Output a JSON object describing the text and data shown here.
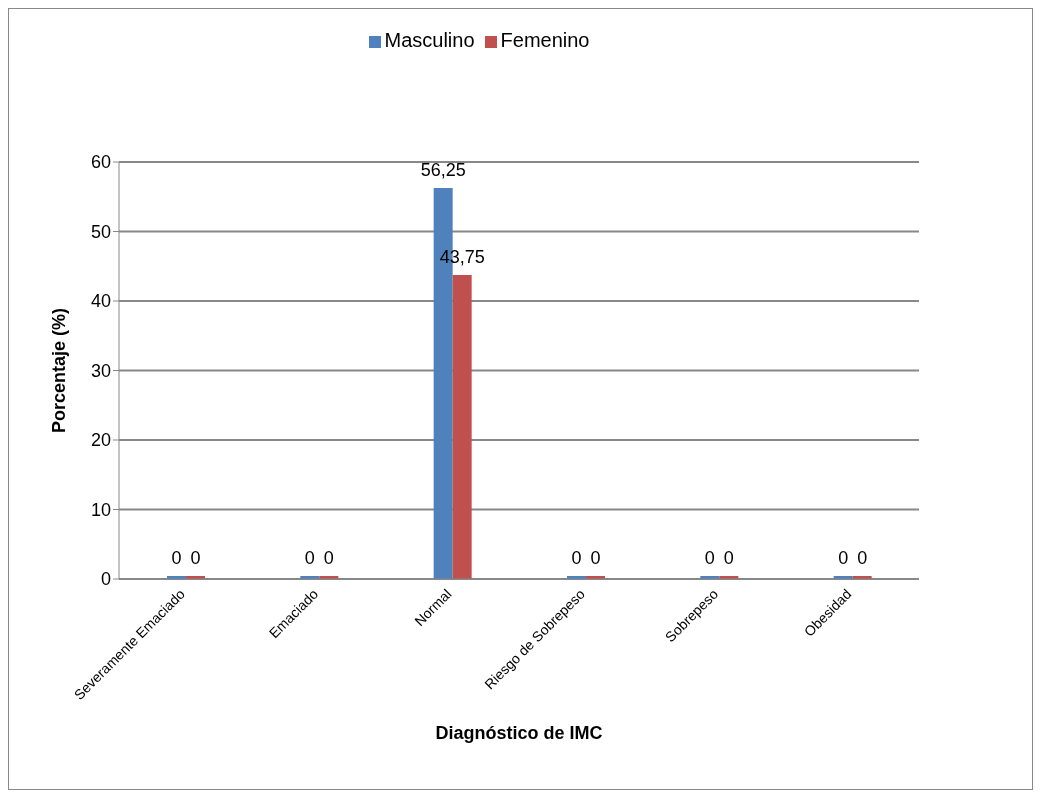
{
  "chart_data": {
    "type": "bar",
    "xlabel": "Diagnóstico de IMC",
    "ylabel": "Porcentaje (%)",
    "categories": [
      "Severamente Emaciado",
      "Emaciado",
      "Normal",
      "Riesgo de Sobrepeso",
      "Sobrepeso",
      "Obesidad"
    ],
    "series": [
      {
        "name": "Masculino",
        "color": "#4f81bd",
        "values": [
          0,
          0,
          56.25,
          0,
          0,
          0
        ],
        "value_labels": [
          "0",
          "0",
          "56,25",
          "0",
          "0",
          "0"
        ]
      },
      {
        "name": "Femenino",
        "color": "#c0504d",
        "values": [
          0,
          0,
          43.75,
          0,
          0,
          0
        ],
        "value_labels": [
          "0",
          "0",
          "43,75",
          "0",
          "0",
          "0"
        ]
      }
    ],
    "ylim": [
      0,
      60
    ],
    "yticks": [
      0,
      10,
      20,
      30,
      40,
      50,
      60
    ],
    "grid": "y",
    "legend": "top"
  }
}
